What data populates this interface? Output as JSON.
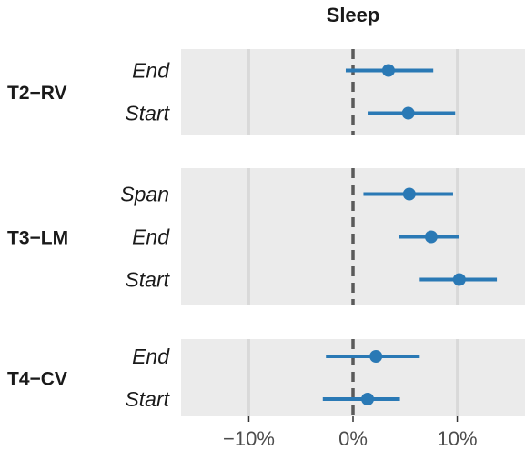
{
  "chart_data": {
    "type": "forest",
    "title": "Sleep",
    "x_axis": {
      "min": -16.5,
      "max": 16.5,
      "ticks": [
        -10,
        0,
        10
      ],
      "tick_labels": [
        "−10%",
        "0%",
        "10%"
      ],
      "reference_line": 0,
      "reference_line_style": "dashed"
    },
    "grid": true,
    "panels": [
      {
        "label": "T2−RV",
        "rows": [
          {
            "label": "End",
            "estimate": 3.4,
            "lower": -0.7,
            "upper": 7.7
          },
          {
            "label": "Start",
            "estimate": 5.3,
            "lower": 1.4,
            "upper": 9.8
          }
        ]
      },
      {
        "label": "T3−LM",
        "rows": [
          {
            "label": "Span",
            "estimate": 5.4,
            "lower": 1.0,
            "upper": 9.6
          },
          {
            "label": "End",
            "estimate": 7.5,
            "lower": 4.4,
            "upper": 10.2
          },
          {
            "label": "Start",
            "estimate": 10.2,
            "lower": 6.4,
            "upper": 13.8
          }
        ]
      },
      {
        "label": "T4−CV",
        "rows": [
          {
            "label": "End",
            "estimate": 2.2,
            "lower": -2.6,
            "upper": 6.4
          },
          {
            "label": "Start",
            "estimate": 1.4,
            "lower": -2.9,
            "upper": 4.5
          }
        ]
      }
    ]
  },
  "colors": {
    "panel_background": "#ebebeb",
    "gridline": "#d9d9d9",
    "reference_line": "#5a5a5a",
    "point": "#2a79b5",
    "interval": "#2a79b5"
  }
}
